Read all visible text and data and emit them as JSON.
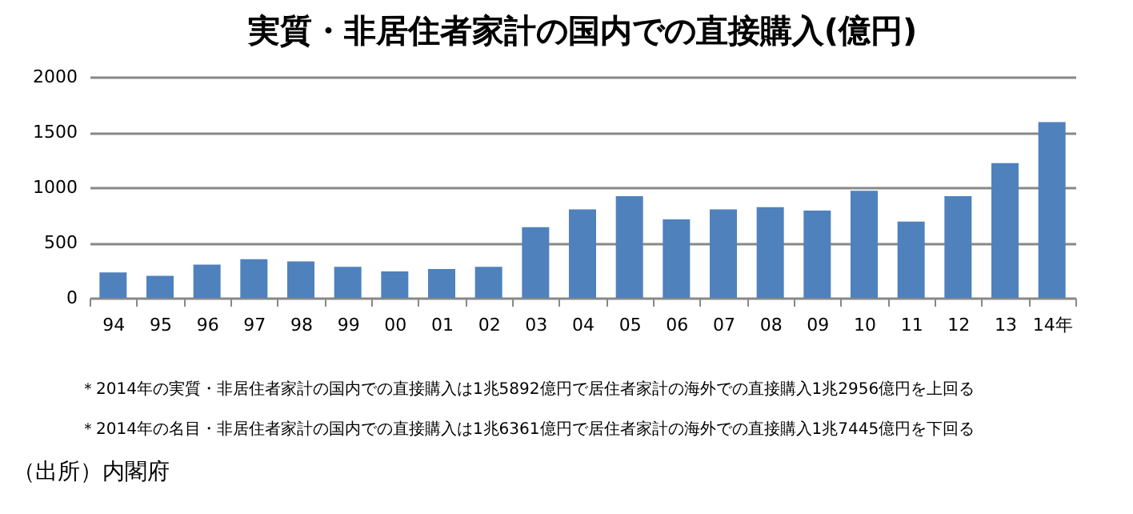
{
  "chart_data": {
    "type": "bar",
    "title": "実質・非居住者家計の国内での直接購入(億円)",
    "categories": [
      "94",
      "95",
      "96",
      "97",
      "98",
      "99",
      "00",
      "01",
      "02",
      "03",
      "04",
      "05",
      "06",
      "07",
      "08",
      "09",
      "10",
      "11",
      "12",
      "13",
      "14年"
    ],
    "values": [
      230,
      200,
      300,
      350,
      330,
      280,
      240,
      260,
      280,
      640,
      800,
      920,
      710,
      800,
      820,
      790,
      970,
      690,
      920,
      1220,
      1590
    ],
    "color": "#4f81bd",
    "ylim": [
      0,
      2000
    ],
    "yticks": [
      0,
      500,
      1000,
      1500,
      2000
    ],
    "grid": "y",
    "annotations": [
      "＊2014年の実質・非居住者家計の国内での直接購入は1兆5892億円で居住者家計の海外での直接購入1兆2956億円を上回る",
      "＊2014年の名目・非居住者家計の国内での直接購入は1兆6361億円で居住者家計の海外での直接購入1兆7445億円を下回る",
      "（出所）内閣府"
    ]
  }
}
